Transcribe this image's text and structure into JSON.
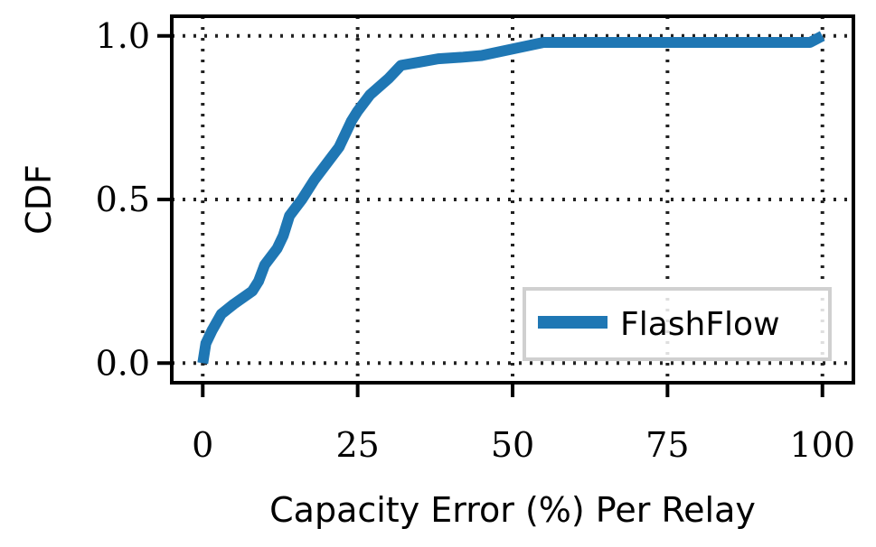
{
  "chart_data": {
    "type": "line",
    "xlabel": "Capacity Error (%) Per Relay",
    "ylabel": "CDF",
    "xlim": [
      -5,
      105
    ],
    "ylim": [
      -0.06,
      1.06
    ],
    "x_ticks": [
      0,
      25,
      50,
      75,
      100
    ],
    "x_tick_labels": [
      "0",
      "25",
      "50",
      "75",
      "100"
    ],
    "y_ticks": [
      0.0,
      0.5,
      1.0
    ],
    "y_tick_labels": [
      "0.0",
      "0.5",
      "1.0"
    ],
    "grid": true,
    "legend": "lower-right",
    "series": [
      {
        "name": "FlashFlow",
        "color": "#1f77b4",
        "x": [
          0,
          0.5,
          1.5,
          3,
          5,
          8,
          9,
          10,
          12,
          13,
          14,
          16,
          18,
          20,
          22,
          24,
          25,
          27,
          30,
          32,
          35,
          38,
          42,
          45,
          50,
          55,
          60,
          70,
          80,
          90,
          98,
          100
        ],
        "y": [
          0.0,
          0.06,
          0.1,
          0.15,
          0.18,
          0.22,
          0.25,
          0.3,
          0.35,
          0.39,
          0.45,
          0.5,
          0.56,
          0.61,
          0.66,
          0.74,
          0.77,
          0.82,
          0.87,
          0.91,
          0.92,
          0.93,
          0.935,
          0.94,
          0.96,
          0.98,
          0.98,
          0.98,
          0.98,
          0.98,
          0.98,
          1.0
        ]
      }
    ]
  }
}
